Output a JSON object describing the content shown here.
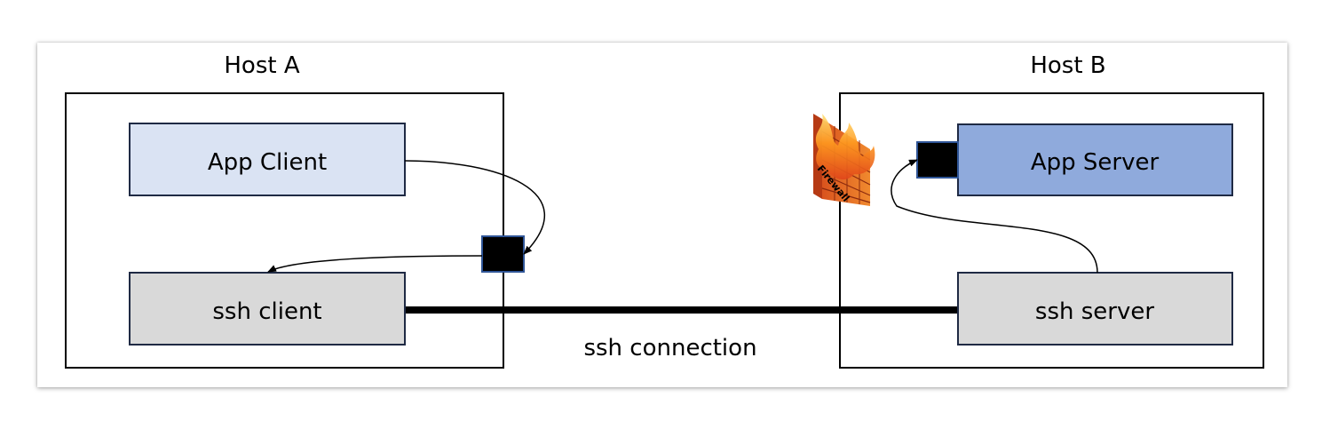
{
  "hosts": {
    "a": {
      "label": "Host A"
    },
    "b": {
      "label": "Host B"
    }
  },
  "nodes": {
    "app_client": {
      "label": "App Client",
      "fill": "#DAE3F3"
    },
    "ssh_client": {
      "label": "ssh client",
      "fill": "#D9D9D9"
    },
    "app_server": {
      "label": "App Server",
      "fill": "#8FAADC"
    },
    "ssh_server": {
      "label": "ssh server",
      "fill": "#D9D9D9"
    }
  },
  "connection": {
    "label": "ssh connection"
  },
  "firewall": {
    "label": "Firewall"
  },
  "colors": {
    "border": "#000000",
    "box_border": "#1F2A44",
    "port": "#000000",
    "port_border": "#2F5597"
  }
}
